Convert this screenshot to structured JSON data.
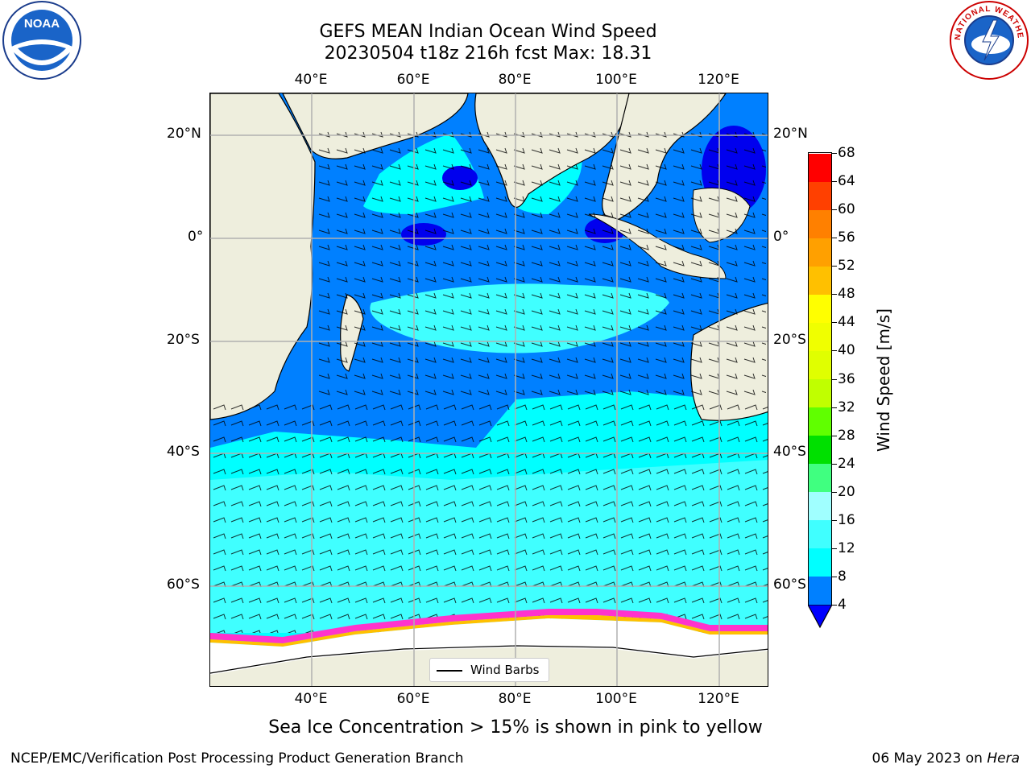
{
  "title": {
    "line1": "GEFS MEAN Indian Ocean Wind Speed",
    "line2": "20230504 t18z 216h fcst   Max: 18.31"
  },
  "map": {
    "lon_labels": [
      "40°E",
      "60°E",
      "80°E",
      "100°E",
      "120°E"
    ],
    "lat_labels": [
      "20°N",
      "0°",
      "20°S",
      "40°S",
      "60°S"
    ],
    "legend_label": "Wind Barbs",
    "colors": {
      "land": "#eeeedd",
      "ice": "#ffffff",
      "grid": "#b0b0b0"
    }
  },
  "colorbar": {
    "label": "Wind Speed [m/s]",
    "ticks": [
      "4",
      "8",
      "12",
      "16",
      "20",
      "24",
      "28",
      "32",
      "36",
      "40",
      "44",
      "48",
      "52",
      "56",
      "60",
      "64",
      "68"
    ],
    "levels": [
      {
        "from": 4,
        "to": 8,
        "color": "#0080ff"
      },
      {
        "from": 8,
        "to": 12,
        "color": "#00ffff"
      },
      {
        "from": 12,
        "to": 16,
        "color": "#40ffff"
      },
      {
        "from": 16,
        "to": 20,
        "color": "#a0ffff"
      },
      {
        "from": 20,
        "to": 24,
        "color": "#40ff80"
      },
      {
        "from": 24,
        "to": 28,
        "color": "#00e000"
      },
      {
        "from": 28,
        "to": 32,
        "color": "#60ff00"
      },
      {
        "from": 32,
        "to": 36,
        "color": "#c0ff00"
      },
      {
        "from": 36,
        "to": 40,
        "color": "#e0ff00"
      },
      {
        "from": 40,
        "to": 44,
        "color": "#f0ff00"
      },
      {
        "from": 44,
        "to": 48,
        "color": "#ffff00"
      },
      {
        "from": 48,
        "to": 52,
        "color": "#ffc000"
      },
      {
        "from": 52,
        "to": 56,
        "color": "#ffa000"
      },
      {
        "from": 56,
        "to": 60,
        "color": "#ff8000"
      },
      {
        "from": 60,
        "to": 64,
        "color": "#ff4000"
      },
      {
        "from": 64,
        "to": 68,
        "color": "#ff0000"
      }
    ],
    "under_color": "#0000ff"
  },
  "footer": {
    "note": "Sea Ice Concentration > 15% is shown in pink to yellow",
    "left": "NCEP/EMC/Verification Post Processing Product Generation Branch",
    "right_prefix": "06 May 2023 on ",
    "right_machine": "Hera"
  },
  "logos": {
    "noaa_text": "NOAA",
    "nws_text": "NATIONAL WEATHER SERVICE"
  }
}
